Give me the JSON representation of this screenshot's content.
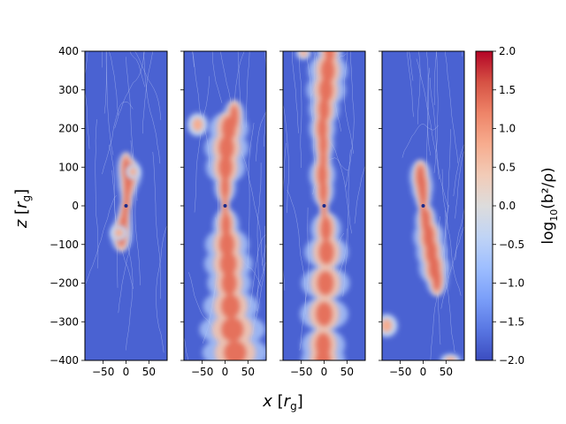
{
  "chart_data": {
    "type": "heatmap",
    "panels": [
      {
        "name": "panel-1",
        "jet": [
          [
            95,
            0,
            8
          ],
          [
            80,
            7,
            11
          ],
          [
            60,
            4,
            9
          ],
          [
            30,
            2,
            6
          ],
          [
            10,
            1,
            4
          ],
          [
            -10,
            -1,
            4
          ],
          [
            -30,
            -3,
            6
          ],
          [
            -55,
            -6,
            8
          ],
          [
            -75,
            -10,
            10
          ]
        ],
        "jet_level": 1.4,
        "lobes": [
          [
            15,
            88,
            10,
            12
          ],
          [
            -15,
            -70,
            12,
            12
          ]
        ]
      },
      {
        "name": "panel-2",
        "jet": [
          [
            230,
            20,
            10
          ],
          [
            200,
            8,
            18
          ],
          [
            150,
            3,
            20
          ],
          [
            100,
            1,
            18
          ],
          [
            50,
            0,
            10
          ],
          [
            10,
            0,
            4
          ],
          [
            -10,
            0,
            4
          ],
          [
            -50,
            2,
            12
          ],
          [
            -100,
            4,
            20
          ],
          [
            -150,
            7,
            22
          ],
          [
            -200,
            9,
            20
          ],
          [
            -260,
            12,
            25
          ],
          [
            -320,
            16,
            30
          ],
          [
            -380,
            22,
            30
          ]
        ],
        "jet_level": 1.35,
        "lobes": [
          [
            -60,
            210,
            14,
            18
          ]
        ]
      },
      {
        "name": "panel-3",
        "jet": [
          [
            400,
            12,
            12
          ],
          [
            350,
            8,
            18
          ],
          [
            300,
            4,
            18
          ],
          [
            250,
            0,
            14
          ],
          [
            200,
            -4,
            12
          ],
          [
            160,
            -2,
            10
          ],
          [
            120,
            -2,
            8
          ],
          [
            80,
            -4,
            12
          ],
          [
            40,
            -2,
            10
          ],
          [
            10,
            0,
            4
          ],
          [
            -10,
            0,
            4
          ],
          [
            -60,
            4,
            14
          ],
          [
            -120,
            5,
            20
          ],
          [
            -200,
            3,
            22
          ],
          [
            -280,
            0,
            22
          ],
          [
            -360,
            -2,
            20
          ],
          [
            -400,
            -2,
            20
          ]
        ],
        "jet_level": 1.35,
        "lobes": [
          [
            -45,
            395,
            10,
            10
          ]
        ]
      },
      {
        "name": "panel-4",
        "jet": [
          [
            75,
            -6,
            10
          ],
          [
            50,
            -2,
            10
          ],
          [
            30,
            0,
            8
          ],
          [
            10,
            0,
            4
          ],
          [
            -10,
            0,
            4
          ],
          [
            -40,
            6,
            10
          ],
          [
            -80,
            12,
            14
          ],
          [
            -120,
            18,
            14
          ],
          [
            -160,
            24,
            14
          ],
          [
            -190,
            30,
            10
          ]
        ],
        "jet_level": 1.4,
        "lobes": [
          [
            -80,
            -310,
            15,
            18
          ],
          [
            60,
            -400,
            14,
            10
          ]
        ]
      }
    ],
    "xlim": [
      -90,
      90
    ],
    "ylim": [
      -400,
      400
    ],
    "xticks": [
      -50,
      0,
      50
    ],
    "xtick_labels": [
      "−50",
      "0",
      "50"
    ],
    "yticks": [
      -400,
      -300,
      -200,
      -100,
      0,
      100,
      200,
      300,
      400
    ],
    "ytick_labels": [
      "−400",
      "−300",
      "−200",
      "−100",
      "0",
      "100",
      "200",
      "300",
      "400"
    ],
    "xlabel": "x [r_g]",
    "ylabel": "z [r_g]",
    "colorbar": {
      "label": "log10(b²/ρ)",
      "vmin": -2.0,
      "vmax": 2.0,
      "ticks": [
        2.0,
        1.5,
        1.0,
        0.5,
        0.0,
        -0.5,
        -1.0,
        -1.5,
        -2.0
      ],
      "tick_labels": [
        "2.0",
        "1.5",
        "1.0",
        "0.5",
        "0.0",
        "−0.5",
        "−1.0",
        "−1.5",
        "−2.0"
      ],
      "colormap": "coolwarm",
      "colors": [
        "#3b4cc0",
        "#5977e3",
        "#7b9ff9",
        "#9ebeff",
        "#c0d4f5",
        "#dddcdc",
        "#f2cbb7",
        "#f7ac8e",
        "#ee8468",
        "#d65244",
        "#b40426"
      ]
    }
  }
}
